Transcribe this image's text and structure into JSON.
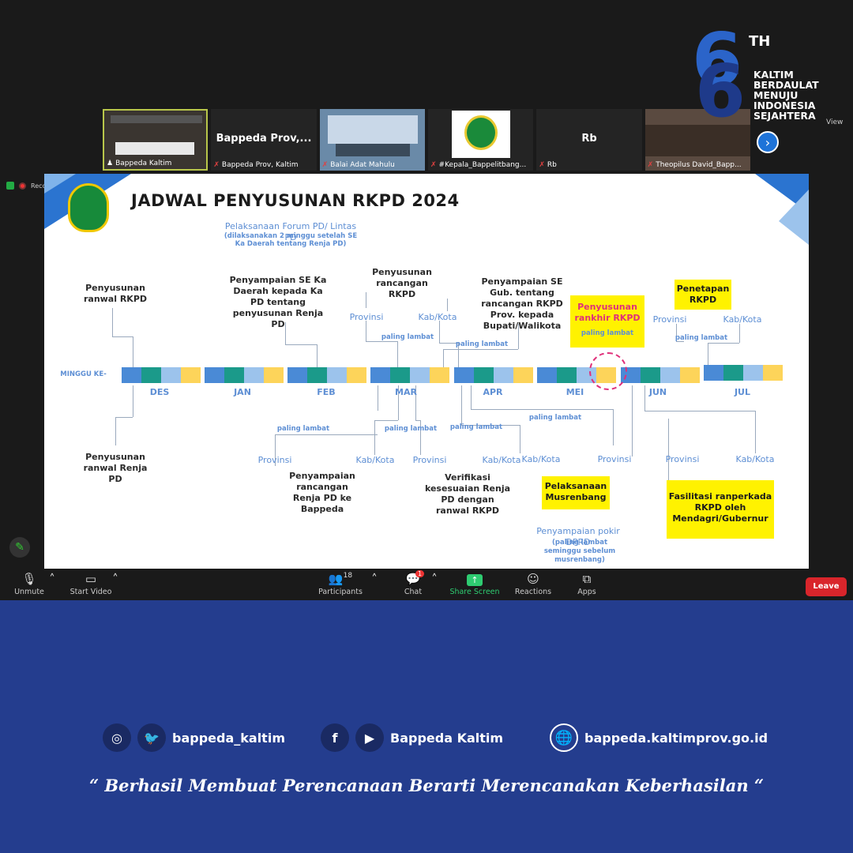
{
  "logo": {
    "number": "6",
    "suffix": "TH",
    "tagline": [
      "KALTIM",
      "BERDAULAT",
      "MENUJU",
      "INDONESIA",
      "SEJAHTERA"
    ]
  },
  "gallery": {
    "view_label": "View",
    "tiles": [
      {
        "name": "Bappeda Kaltim",
        "big": ""
      },
      {
        "name": "Bappeda Prov, Kaltim",
        "big": "Bappeda  Prov,..."
      },
      {
        "name": "Balai Adat Mahulu",
        "big": ""
      },
      {
        "name": "#Kepala_Bappelitbang...",
        "big": ""
      },
      {
        "name": "Rb",
        "big": "Rb"
      },
      {
        "name": "Theopilus David_Bapp...",
        "big": ""
      }
    ]
  },
  "recording_label": "Recording...",
  "slide": {
    "title": "JADWAL PENYUSUNAN RKPD 2024",
    "minggu": "MINGGU KE-",
    "months": [
      "DES",
      "JAN",
      "FEB",
      "MAR",
      "APR",
      "MEI",
      "JUN",
      "JUL"
    ],
    "forum_main": "Pelaksanaan Forum PD/ Lintas PD",
    "forum_note": "(dilaksanakan 2 minggu setelah SE Ka Daerah tentang Renja PD)",
    "top": {
      "ranwal_rkpd": "Penyusunan ranwal RKPD",
      "se_ka_daerah": "Penyampaian SE Ka Daerah kepada Ka PD tentang penyusunan Renja PD",
      "rancangan_rkpd": "Penyusunan rancangan RKPD",
      "se_gub": "Penyampaian SE Gub. tentang rancangan RKPD Prov. kepada Bupati/Walikota",
      "rankhir": "Penyusunan rankhir RKPD",
      "penetapan": "Penetapan RKPD"
    },
    "bottom": {
      "ranwal_renja": "Penyusunan ranwal Renja PD",
      "renja_bappeda": "Penyampaian rancangan Renja PD ke Bappeda",
      "verifikasi": "Verifikasi kesesuaian Renja PD dengan ranwal RKPD",
      "musrenbang": "Pelaksanaan Musrenbang",
      "fasilitasi": "Fasilitasi ranperkada RKPD oleh Mendagri/Gubernur",
      "pokir_main": "Penyampaian pokir DPRD",
      "pokir_note": "(paling lambat seminggu sebelum musrenbang)"
    },
    "provinsi": "Provinsi",
    "kabkota": "Kab/Kota",
    "paling_lambat": "paling lambat"
  },
  "toolbar": {
    "unmute": "Unmute",
    "start_video": "Start Video",
    "participants": "Participants",
    "participants_count": "18",
    "chat": "Chat",
    "chat_badge": "1",
    "share": "Share Screen",
    "reactions": "Reactions",
    "apps": "Apps",
    "leave": "Leave"
  },
  "footer": {
    "instagram_twitter": "bappeda_kaltim",
    "facebook_youtube": "Bappeda Kaltim",
    "website": "bappeda.kaltimprov.go.id",
    "quote": "“ Berhasil  Membuat Perencanaan Berarti Merencanakan Keberhasilan “"
  },
  "colors": {
    "accent_blue": "#243d8e",
    "teal": "#1b9a8a",
    "light_blue": "#9cc3ec",
    "yellow": "#fdd45a",
    "mid_blue": "#4a8ad6"
  }
}
